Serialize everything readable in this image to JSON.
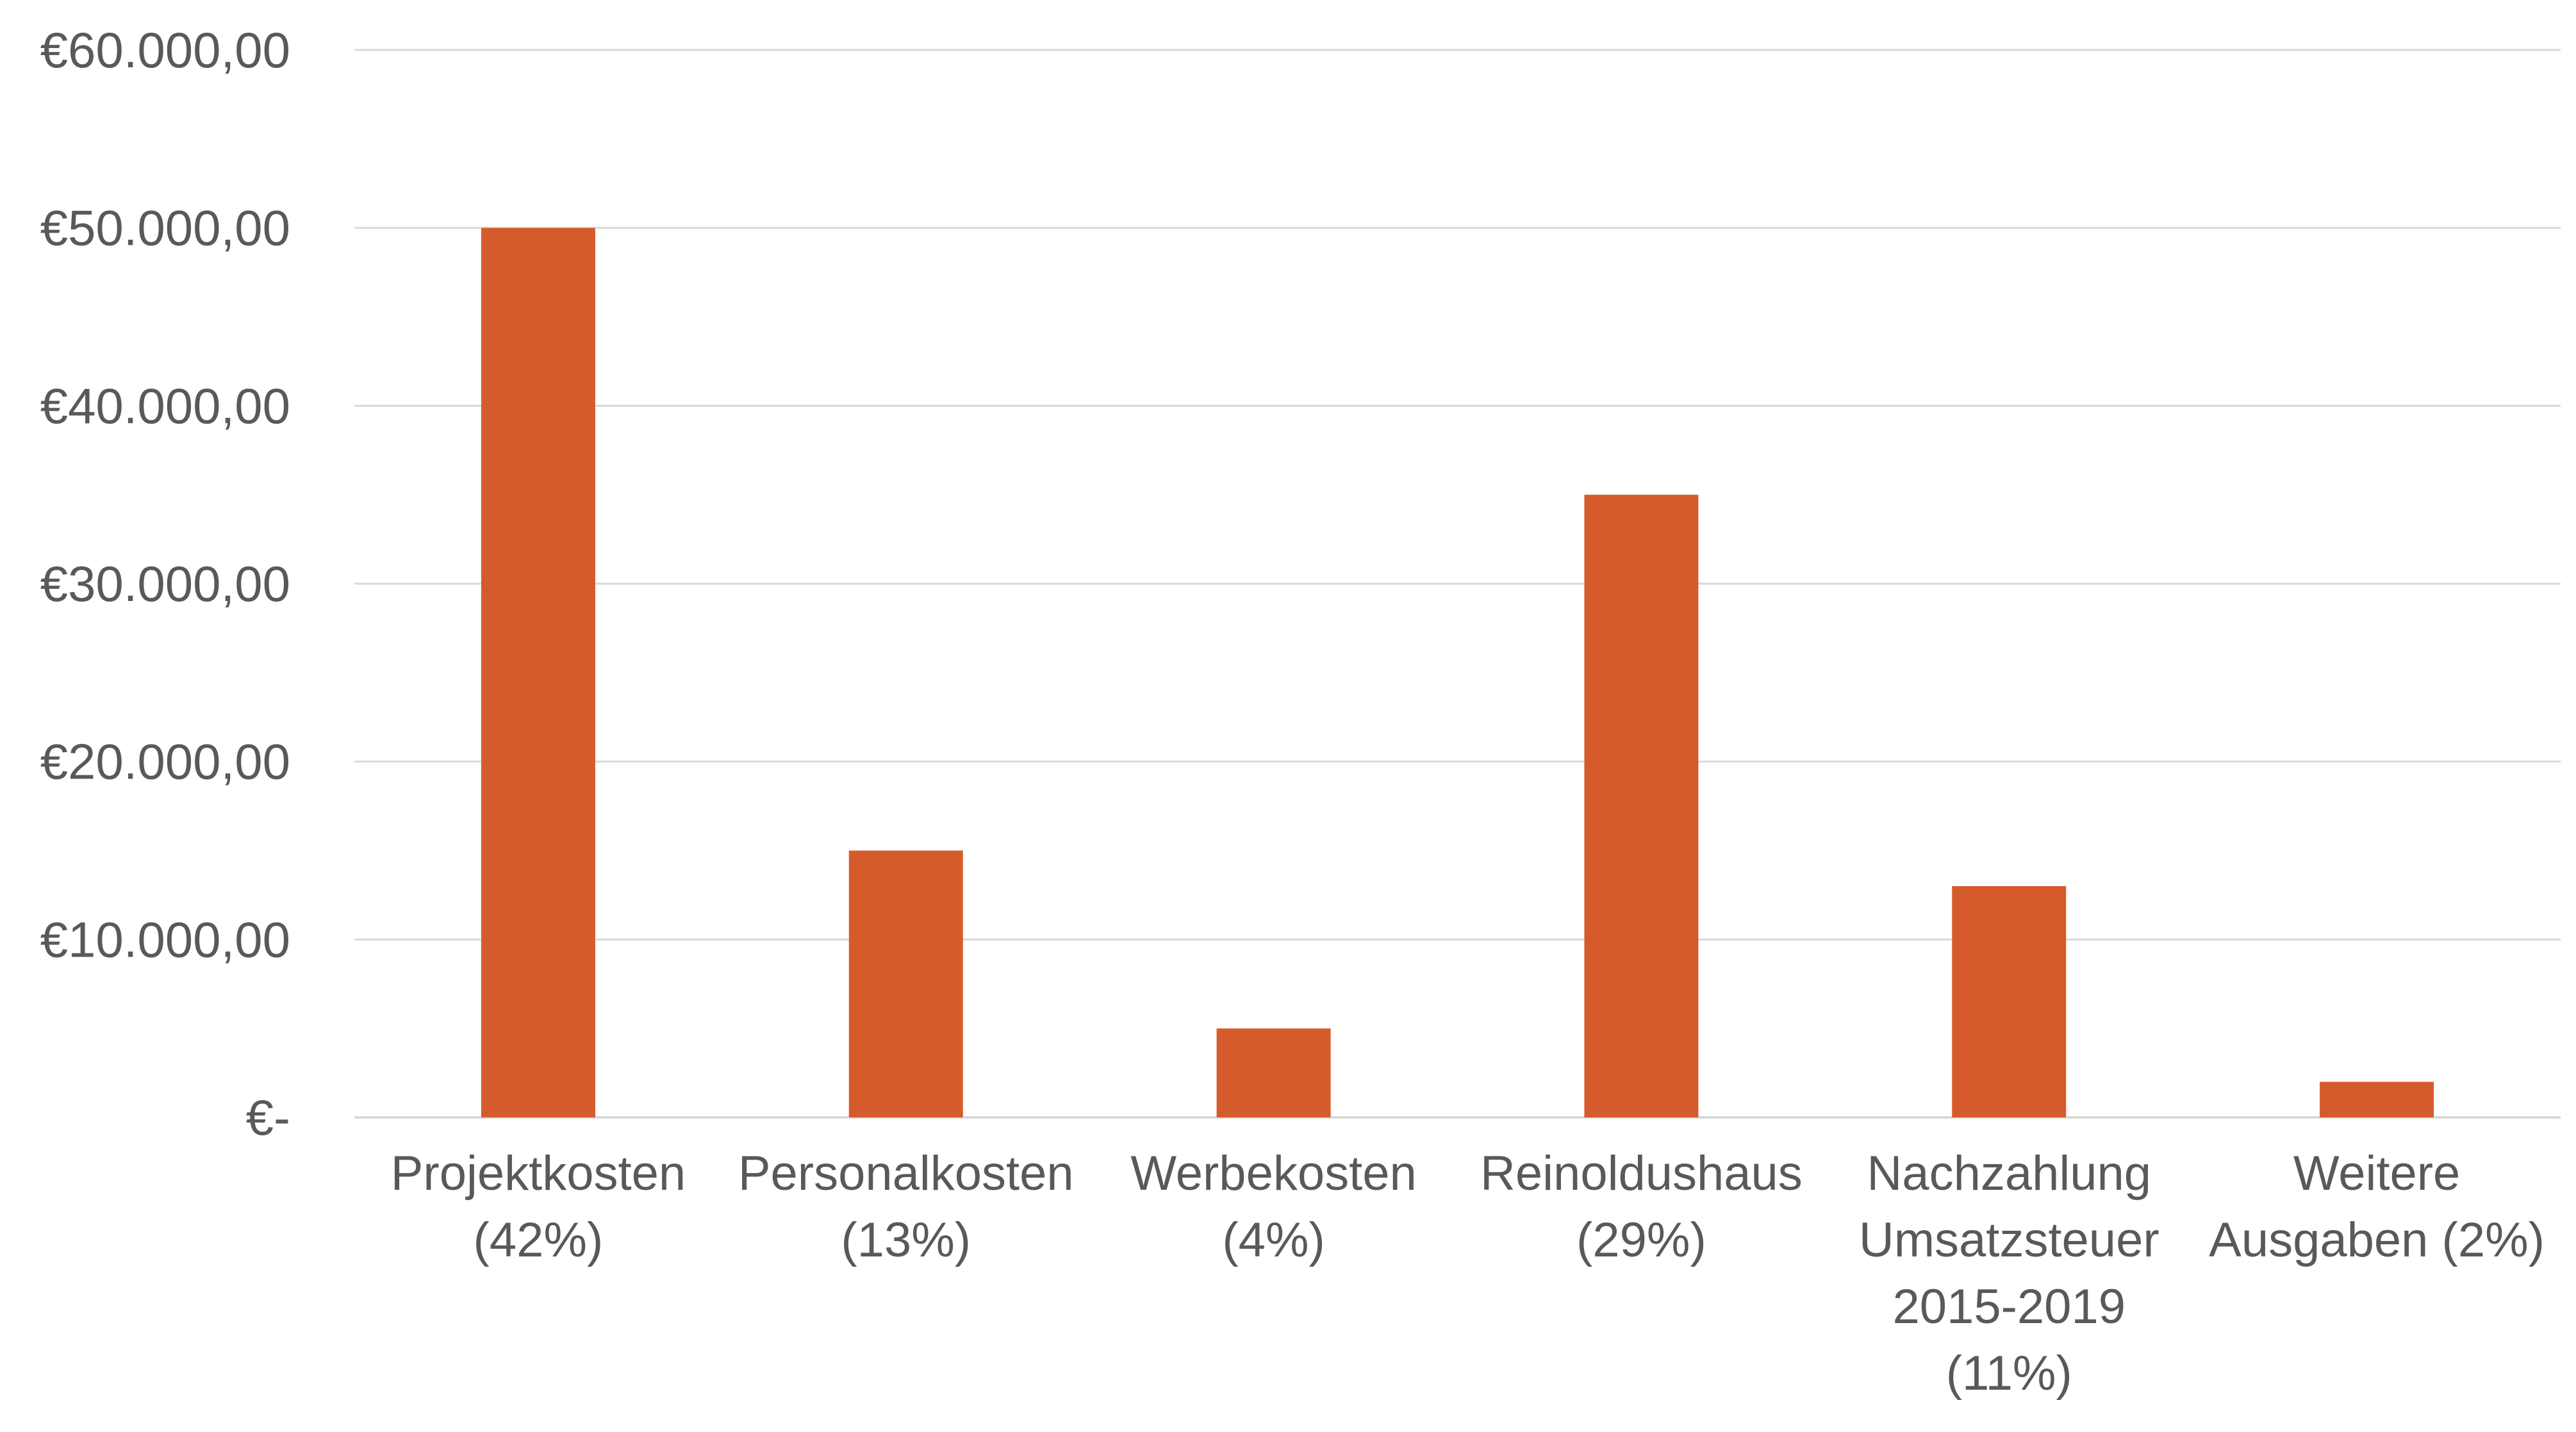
{
  "chart_data": {
    "type": "bar",
    "categories": [
      [
        "Projektkosten",
        "(42%)"
      ],
      [
        "Personalkosten",
        "(13%)"
      ],
      [
        "Werbekosten",
        "(4%)"
      ],
      [
        "Reinoldushaus",
        "(29%)"
      ],
      [
        "Nachzahlung",
        "Umsatzsteuer",
        "2015-2019",
        "(11%)"
      ],
      [
        "Weitere",
        "Ausgaben (2%)"
      ]
    ],
    "values": [
      50000,
      15000,
      5000,
      35000,
      13000,
      2000
    ],
    "ylim": [
      0,
      60000
    ],
    "yticks": [
      0,
      10000,
      20000,
      30000,
      40000,
      50000,
      60000
    ],
    "ytick_labels": [
      "€-",
      "€10.000,00",
      "€20.000,00",
      "€30.000,00",
      "€40.000,00",
      "€50.000,00",
      "€60.000,00"
    ],
    "title": "",
    "xlabel": "",
    "ylabel": "",
    "grid": true,
    "legend": "none",
    "colors": {
      "bar": "#D65B2C",
      "grid": "#D9D9D9",
      "text": "#595959"
    }
  }
}
